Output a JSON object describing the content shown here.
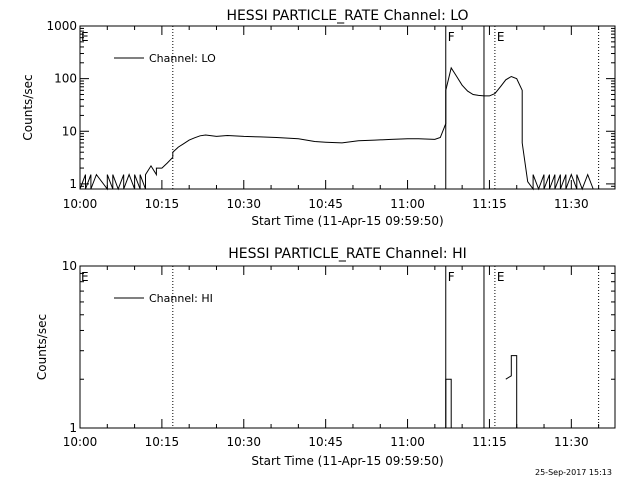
{
  "stamp": "25-Sep-2017 15:13",
  "chart_data": [
    {
      "type": "line",
      "title": "HESSI PARTICLE_RATE Channel: LO",
      "xlabel": "Start Time (11-Apr-15 09:59:50)",
      "ylabel": "Counts/sec",
      "yscale": "log",
      "xlim": [
        "10:00",
        "11:38"
      ],
      "ylim": [
        0.8,
        1000
      ],
      "xticks": [
        "10:00",
        "10:15",
        "10:30",
        "10:45",
        "11:00",
        "11:15",
        "11:30"
      ],
      "yticks": [
        "1",
        "10",
        "100",
        "1000"
      ],
      "legend": {
        "position": "top-left",
        "entries": [
          "Channel: LO"
        ]
      },
      "markers": [
        {
          "x": "10:17",
          "label": "",
          "style": "dotted"
        },
        {
          "x": "11:07",
          "label": "F",
          "style": "solid"
        },
        {
          "x": "11:14",
          "label": "",
          "style": "solid"
        },
        {
          "x": "11:16",
          "label": "E",
          "style": "dotted"
        },
        {
          "x": "11:35",
          "label": "",
          "style": "dotted"
        }
      ],
      "corner_label": "E",
      "series": [
        {
          "name": "Channel: LO",
          "x": [
            "10:00",
            "10:01",
            "10:01",
            "10:02",
            "10:02",
            "10:03",
            "10:05",
            "10:05",
            "10:06",
            "10:06",
            "10:07",
            "10:08",
            "10:08",
            "10:09",
            "10:10",
            "10:10",
            "10:11",
            "10:11",
            "10:12",
            "10:12",
            "10:13",
            "10:13",
            "10:14",
            "10:14",
            "10:15",
            "10:16",
            "10:17",
            "10:17",
            "10:18",
            "10:19",
            "10:20",
            "10:21",
            "10:22",
            "10:23",
            "10:25",
            "10:27",
            "10:30",
            "10:33",
            "10:36",
            "10:40",
            "10:43",
            "10:45",
            "10:48",
            "10:51",
            "10:54",
            "10:57",
            "11:00",
            "11:02",
            "11:05",
            "11:06",
            "11:07",
            "11:07",
            "11:08",
            "11:09",
            "11:10",
            "11:11",
            "11:12",
            "11:13",
            "11:14",
            "11:15",
            "11:16",
            "11:17",
            "11:18",
            "11:19",
            "11:20",
            "11:21",
            "11:21",
            "11:22",
            "11:23",
            "11:23",
            "11:24",
            "11:25",
            "11:25",
            "11:26",
            "11:26",
            "11:27",
            "11:27",
            "11:28",
            "11:28",
            "11:29",
            "11:29",
            "11:30",
            "11:31",
            "11:31",
            "11:32",
            "11:33",
            "11:34"
          ],
          "y": [
            0.8,
            1.5,
            0.8,
            1.5,
            0.8,
            1.5,
            0.8,
            1.5,
            0.8,
            1.5,
            0.8,
            1.5,
            0.8,
            1.5,
            0.8,
            1.5,
            0.8,
            1.5,
            0.8,
            1.5,
            2.2,
            2.2,
            1.5,
            2.0,
            2.0,
            2.5,
            3.2,
            4.0,
            5.0,
            5.8,
            6.8,
            7.5,
            8.2,
            8.5,
            8.0,
            8.3,
            8.0,
            7.8,
            7.6,
            7.2,
            6.4,
            6.2,
            6.0,
            6.6,
            6.8,
            7.0,
            7.2,
            7.2,
            7.0,
            7.6,
            14,
            60,
            160,
            110,
            75,
            58,
            50,
            48,
            47,
            47,
            52,
            70,
            95,
            110,
            100,
            60,
            6,
            1.1,
            0.8,
            1.5,
            0.8,
            1.5,
            0.8,
            1.5,
            0.8,
            1.5,
            0.8,
            1.5,
            0.8,
            1.5,
            0.8,
            1.5,
            0.8,
            1.5,
            0.8,
            1.5,
            0.8
          ]
        }
      ]
    },
    {
      "type": "line",
      "title": "HESSI PARTICLE_RATE Channel: HI",
      "xlabel": "Start Time (11-Apr-15 09:59:50)",
      "ylabel": "Counts/sec",
      "yscale": "log",
      "xlim": [
        "10:00",
        "11:38"
      ],
      "ylim": [
        1,
        10
      ],
      "xticks": [
        "10:00",
        "10:15",
        "10:30",
        "10:45",
        "11:00",
        "11:15",
        "11:30"
      ],
      "yticks": [
        "1",
        "10"
      ],
      "legend": {
        "position": "top-left",
        "entries": [
          "Channel: HI"
        ]
      },
      "markers": [
        {
          "x": "10:17",
          "label": "",
          "style": "dotted"
        },
        {
          "x": "11:07",
          "label": "F",
          "style": "solid"
        },
        {
          "x": "11:14",
          "label": "",
          "style": "solid"
        },
        {
          "x": "11:16",
          "label": "E",
          "style": "dotted"
        },
        {
          "x": "11:35",
          "label": "",
          "style": "dotted"
        }
      ],
      "corner_label": "E",
      "series": [
        {
          "name": "Channel: HI",
          "segments": [
            {
              "x": [
                "11:07",
                "11:07",
                "11:08",
                "11:08"
              ],
              "y": [
                1.0,
                2.0,
                2.0,
                1.0
              ]
            },
            {
              "x": [
                "11:18",
                "11:19",
                "11:19",
                "11:20",
                "11:20"
              ],
              "y": [
                2.0,
                2.1,
                2.8,
                2.8,
                1.0
              ]
            }
          ]
        }
      ]
    }
  ]
}
